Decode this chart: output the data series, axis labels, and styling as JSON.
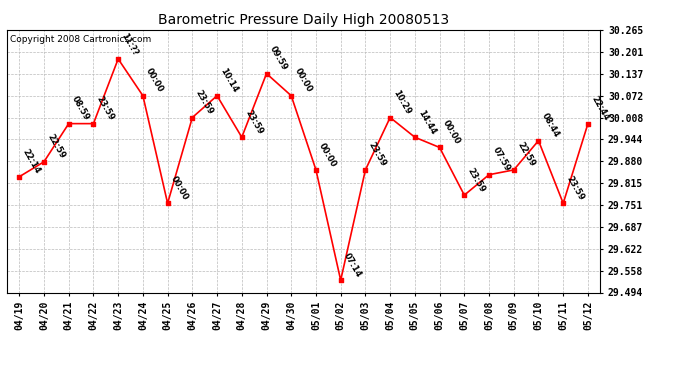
{
  "title": "Barometric Pressure Daily High 20080513",
  "copyright": "Copyright 2008 Cartronics.com",
  "x_labels": [
    "04/19",
    "04/20",
    "04/21",
    "04/22",
    "04/23",
    "04/24",
    "04/25",
    "04/26",
    "04/27",
    "04/28",
    "04/29",
    "04/30",
    "05/01",
    "05/02",
    "05/03",
    "05/04",
    "05/05",
    "05/06",
    "05/07",
    "05/08",
    "05/09",
    "05/10",
    "05/11",
    "05/12"
  ],
  "y_values": [
    29.834,
    29.878,
    29.99,
    29.99,
    30.18,
    30.072,
    29.756,
    30.008,
    30.072,
    29.95,
    30.137,
    30.072,
    29.854,
    29.53,
    29.854,
    30.008,
    29.95,
    29.92,
    29.78,
    29.84,
    29.854,
    29.94,
    29.756,
    29.99
  ],
  "time_labels": [
    "22:14",
    "22:59",
    "08:59",
    "23:59",
    "11:??",
    "00:00",
    "00:00",
    "23:59",
    "10:14",
    "23:59",
    "09:59",
    "00:00",
    "00:00",
    "07:14",
    "23:59",
    "10:29",
    "14:44",
    "00:00",
    "23:59",
    "07:59",
    "22:59",
    "08:44",
    "23:59",
    "22:44"
  ],
  "ylim_min": 29.494,
  "ylim_max": 30.265,
  "yticks": [
    29.494,
    29.558,
    29.622,
    29.687,
    29.751,
    29.815,
    29.88,
    29.944,
    30.008,
    30.072,
    30.137,
    30.201,
    30.265
  ],
  "line_color": "#FF0000",
  "marker_color": "#FF0000",
  "bg_color": "#FFFFFF",
  "plot_bg_color": "#FFFFFF",
  "grid_color": "#BBBBBB",
  "title_fontsize": 10,
  "label_fontsize": 7,
  "copyright_fontsize": 6.5,
  "time_label_fontsize": 6
}
